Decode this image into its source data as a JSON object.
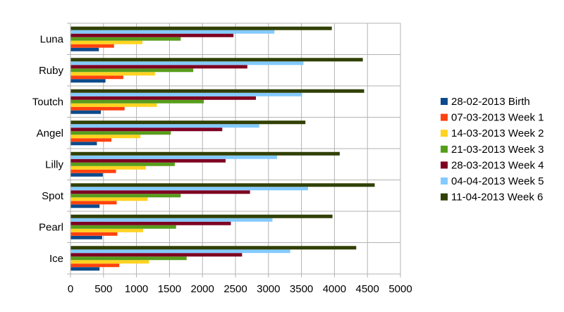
{
  "chart_data": {
    "type": "bar",
    "orientation": "horizontal",
    "title": "",
    "xlabel": "",
    "ylabel": "",
    "categories": [
      "Luna",
      "Ruby",
      "Toutch",
      "Angel",
      "Lilly",
      "Spot",
      "Pearl",
      "Ice"
    ],
    "xlim": [
      0,
      5000
    ],
    "xticks": [
      0,
      500,
      1000,
      1500,
      2000,
      2500,
      3000,
      3500,
      4000,
      4500,
      5000
    ],
    "grid": true,
    "legend_position": "right",
    "series": [
      {
        "name": "28-02-2013 Birth",
        "color": "#0c4a8c",
        "values": [
          430,
          530,
          460,
          400,
          490,
          440,
          480,
          440
        ]
      },
      {
        "name": "07-03-2013 Week 1",
        "color": "#ff420e",
        "values": [
          660,
          800,
          820,
          620,
          690,
          700,
          710,
          740
        ]
      },
      {
        "name": "14-03-2013 Week 2",
        "color": "#ffd320",
        "values": [
          1090,
          1280,
          1310,
          1060,
          1140,
          1170,
          1100,
          1190
        ]
      },
      {
        "name": "21-03-2013 Week 3",
        "color": "#579d1c",
        "values": [
          1670,
          1860,
          2020,
          1520,
          1580,
          1670,
          1600,
          1760
        ]
      },
      {
        "name": "28-03-2013 Week 4",
        "color": "#7e0021",
        "values": [
          2470,
          2680,
          2810,
          2300,
          2350,
          2720,
          2430,
          2600
        ]
      },
      {
        "name": "04-04-2013 Week 5",
        "color": "#83caff",
        "values": [
          3090,
          3530,
          3510,
          2860,
          3130,
          3600,
          3060,
          3330
        ]
      },
      {
        "name": "11-04-2013 Week 6",
        "color": "#314004",
        "values": [
          3960,
          4430,
          4450,
          3560,
          4080,
          4610,
          3970,
          4330
        ]
      }
    ]
  }
}
